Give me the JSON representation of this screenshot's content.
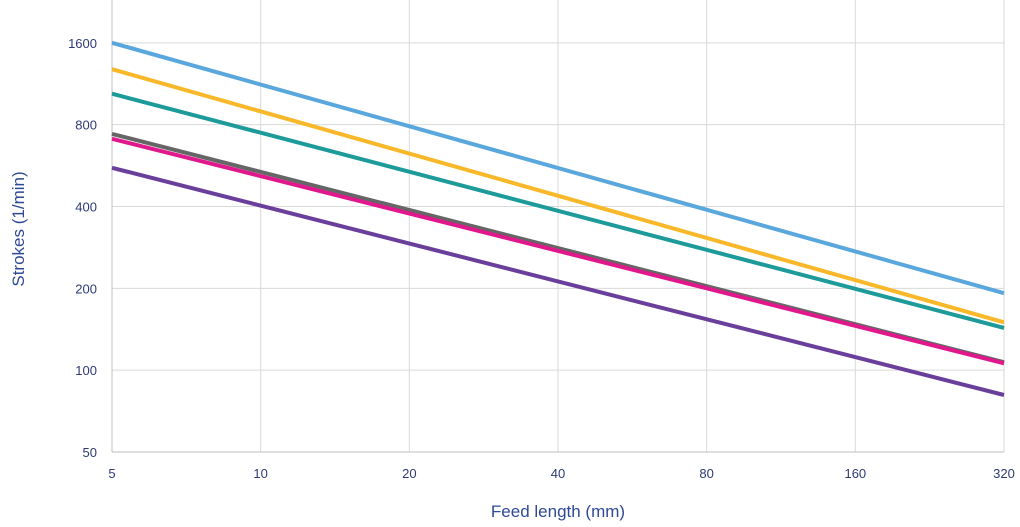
{
  "chart_data": {
    "type": "line",
    "title": "",
    "xlabel": "Feed length (mm)",
    "ylabel": "Strokes (1/min)",
    "x_scale": "log2",
    "y_scale": "log2",
    "xlim": [
      5,
      320
    ],
    "ylim": [
      50,
      2300
    ],
    "x_ticks": [
      5,
      10,
      20,
      40,
      80,
      160,
      320
    ],
    "y_ticks": [
      50,
      100,
      200,
      400,
      800,
      1600
    ],
    "grid": true,
    "legend": "none",
    "series": [
      {
        "color": "#5aa7dd",
        "points": [
          [
            5,
            1600
          ],
          [
            320,
            192
          ]
        ]
      },
      {
        "color": "#f8b829",
        "points": [
          [
            5,
            1280
          ],
          [
            320,
            150
          ]
        ]
      },
      {
        "color": "#1d9a9a",
        "points": [
          [
            5,
            1040
          ],
          [
            320,
            143
          ]
        ]
      },
      {
        "color": "#666666",
        "points": [
          [
            5,
            740
          ],
          [
            320,
            107
          ]
        ]
      },
      {
        "color": "#e0188c",
        "points": [
          [
            5,
            710
          ],
          [
            80,
            200
          ],
          [
            320,
            106
          ]
        ]
      },
      {
        "color": "#6a3f9b",
        "points": [
          [
            5,
            555
          ],
          [
            320,
            81
          ]
        ]
      }
    ]
  }
}
